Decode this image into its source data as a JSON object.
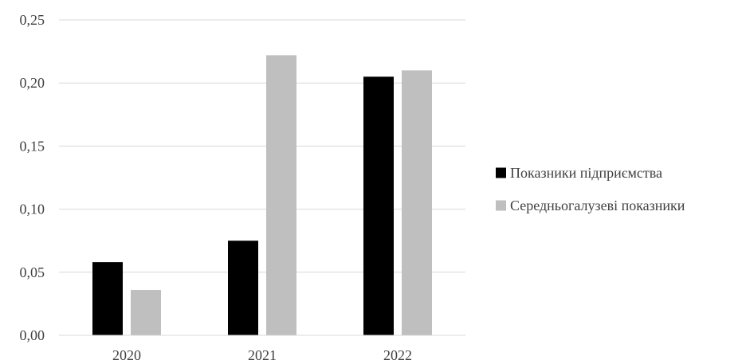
{
  "chart_data": {
    "type": "bar",
    "categories": [
      "2020",
      "2021",
      "2022"
    ],
    "series": [
      {
        "name": "Показники підприємства",
        "values": [
          0.058,
          0.075,
          0.205
        ],
        "color": "#000000"
      },
      {
        "name": "Середньогалузеві показники",
        "values": [
          0.036,
          0.222,
          0.21
        ],
        "color": "#bfbfbf"
      }
    ],
    "title": "",
    "xlabel": "",
    "ylabel": "",
    "ylim": [
      0,
      0.25
    ],
    "yticks": [
      0,
      0.05,
      0.1,
      0.15,
      0.2,
      0.25
    ],
    "ytick_labels": [
      "0,00",
      "0,05",
      "0,10",
      "0,15",
      "0,20",
      "0,25"
    ],
    "grid": true,
    "legend_position": "right",
    "gridline_color": "#d9d9d9"
  }
}
